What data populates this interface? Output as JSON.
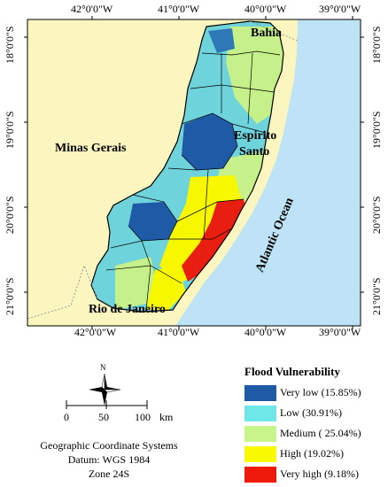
{
  "map": {
    "top_longitudes": [
      "42°0'0\"W",
      "41°0'0\"W",
      "40°0'0\"W",
      "39°0'0\"W"
    ],
    "bottom_longitudes": [
      "42°0'0\"W",
      "41°0'0\"W",
      "40°0'0\"W",
      "39°0'0\"W"
    ],
    "left_latitudes": [
      "18°0'0\"S",
      "19°0'0\"S",
      "20°0'0\"S",
      "21°0'0\"S"
    ],
    "right_latitudes": [
      "18°0'0\"S",
      "19°0'0\"S",
      "20°0'0\"S",
      "21°0'0\"S"
    ],
    "region_labels": {
      "bahia": "Bahia",
      "minas_gerais": "Minas Gerais",
      "espirito_santo_line1": "Espirito",
      "espirito_santo_line2": "Santo",
      "rio_de_janeiro": "Rio de Janeiro",
      "atlantic_ocean": "Atlantic Ocean"
    },
    "colors": {
      "land_other": "#fbf5c0",
      "ocean": "#bfe3f6",
      "very_low": "#1f5aa6",
      "low": "#6fd3dc",
      "medium": "#c6f08a",
      "high": "#f7f700",
      "very_high": "#e81e10"
    }
  },
  "north_arrow": {
    "label": "N"
  },
  "scale_bar": {
    "ticks": [
      "0",
      "50",
      "100"
    ],
    "unit": "km"
  },
  "legend": {
    "title": "Flood Vulnerability",
    "items": [
      {
        "label": "Very low (15.85%)",
        "color": "#1f5aa6"
      },
      {
        "label": "Low (30.91%)",
        "color": "#6fe7e9"
      },
      {
        "label": "Medium ( 25.04%)",
        "color": "#c7f58c"
      },
      {
        "label": "High (19.02%)",
        "color": "#f9f900"
      },
      {
        "label": "Very high (9.18%)",
        "color": "#f01a0a"
      }
    ]
  },
  "crs": {
    "line1": "Geographic Coordinate Systems",
    "line2": "Datum: WGS 1984",
    "line3": "Zone 24S"
  }
}
